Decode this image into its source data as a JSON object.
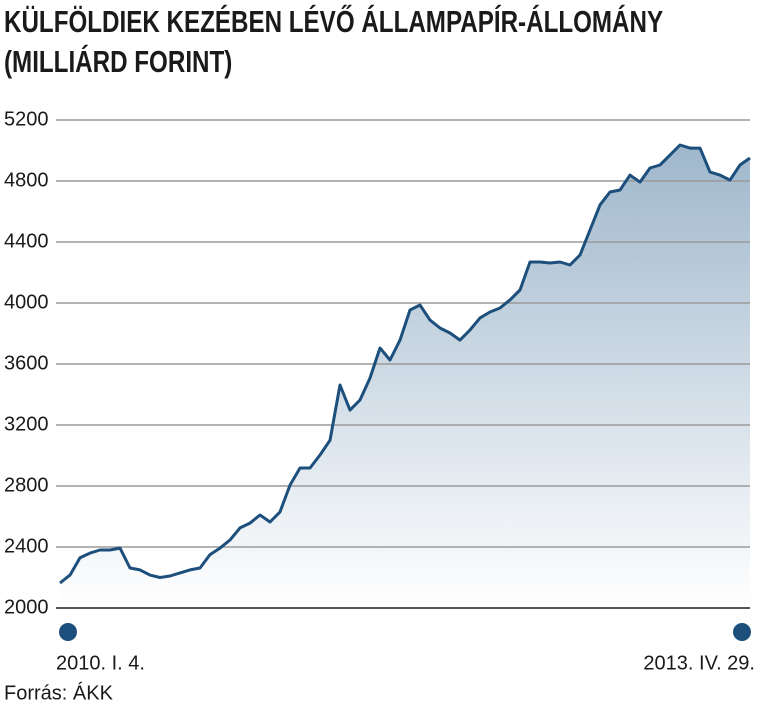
{
  "chart_data": {
    "type": "area-line",
    "title": "KÜLFÖLDIEK KEZÉBEN LÉVŐ ÁLLAMPAPÍR-ÁLLOMÁNY (MILLIÁRD FORINT)",
    "source": "Forrás: ÁKK",
    "categories": [
      "2010. I. 4.",
      null,
      null,
      null,
      null,
      null,
      null,
      null,
      null,
      null,
      null,
      null,
      null,
      null,
      null,
      null,
      null,
      null,
      null,
      null,
      null,
      null,
      null,
      null,
      null,
      null,
      null,
      null,
      null,
      null,
      null,
      null,
      null,
      null,
      null,
      null,
      null,
      null,
      null,
      null,
      null,
      null,
      null,
      null,
      null,
      null,
      null,
      null,
      null,
      null,
      null,
      null,
      null,
      null,
      null,
      null,
      null,
      null,
      null,
      null,
      null,
      null,
      null,
      null,
      null,
      null,
      null,
      null,
      null,
      "2013. IV. 29."
    ],
    "values": [
      2164,
      2216,
      2330,
      2360,
      2380,
      2380,
      2393,
      2262,
      2250,
      2216,
      2200,
      2210,
      2230,
      2250,
      2262,
      2350,
      2393,
      2446,
      2525,
      2557,
      2610,
      2564,
      2630,
      2806,
      2918,
      2918,
      3003,
      3100,
      3462,
      3298,
      3364,
      3508,
      3705,
      3626,
      3757,
      3954,
      3987,
      3888,
      3836,
      3803,
      3757,
      3823,
      3902,
      3941,
      3967,
      4020,
      4085,
      4269,
      4269,
      4262,
      4269,
      4249,
      4315,
      4479,
      4643,
      4728,
      4741,
      4839,
      4793,
      4885,
      4905,
      4970,
      5036,
      5016,
      5016,
      4859,
      4839,
      4806,
      4905,
      4951
    ],
    "color": "#1d4f7c",
    "ylim": [
      2000,
      5200
    ],
    "yticks": [
      2000,
      2400,
      2800,
      3200,
      3600,
      4000,
      4400,
      4800,
      5200
    ],
    "grid": true
  }
}
